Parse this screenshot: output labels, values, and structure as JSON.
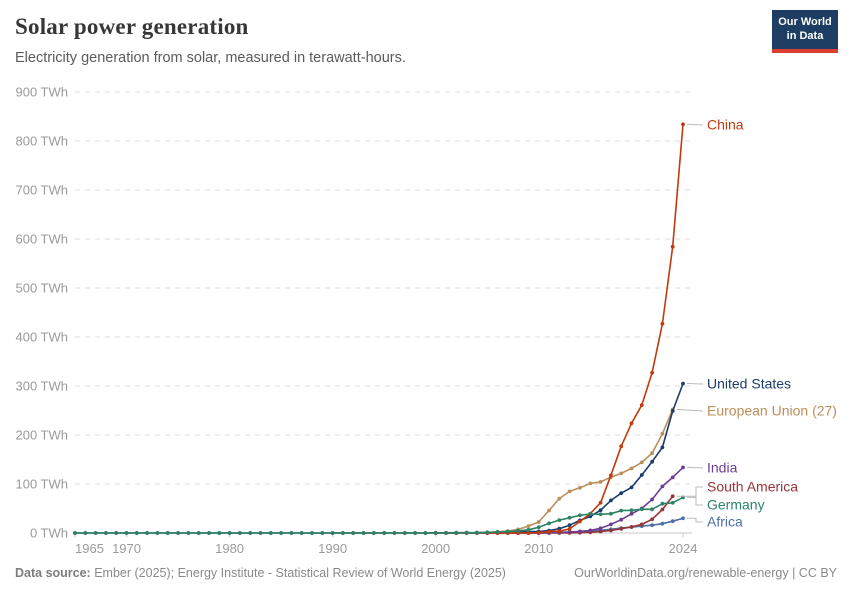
{
  "header": {
    "title": "Solar power generation",
    "subtitle": "Electricity generation from solar, measured in terawatt-hours.",
    "logo": {
      "line1": "Our World",
      "line2": "in Data"
    }
  },
  "footer": {
    "source_label": "Data source:",
    "source_text": " Ember (2025); Energy Institute - Statistical Review of World Energy (2025)",
    "right_text": "OurWorldinData.org/renewable-energy | CC BY"
  },
  "colors": {
    "logo_bg": "#1d3d63",
    "logo_underline": "#dc3d33",
    "gridline": "#dedede",
    "zero_line": "#c8c8c8",
    "tick_text": "#9a9a9a",
    "connector": "#bbbbbb"
  },
  "chart_data": {
    "type": "line",
    "unit": "TWh",
    "ylim": [
      0,
      900
    ],
    "ytick_interval": 100,
    "ytick_format": "{v} TWh",
    "x_range": [
      1965,
      2024
    ],
    "x_ticks": [
      1965,
      1970,
      1980,
      1990,
      2000,
      2010,
      2024
    ],
    "grid": "dashed-horizontal",
    "legend_position": "end-of-line-labels-right",
    "draw_order": [
      "European Union (27)",
      "United States",
      "Africa",
      "South America",
      "India",
      "China",
      "Germany"
    ],
    "series": [
      {
        "name": "China",
        "color": "#C13A0E",
        "label_y": 125,
        "start_year": 2000,
        "values": [
          0,
          0,
          0,
          0,
          0,
          0.1,
          0.1,
          0.1,
          0.2,
          0.4,
          0.7,
          2.6,
          3.6,
          8.4,
          23.5,
          39.5,
          61.9,
          117.8,
          176.9,
          223.8,
          261.1,
          327.0,
          427.0,
          584.2,
          834.1
        ]
      },
      {
        "name": "United States",
        "color": "#1B3D6D",
        "label_y": 384,
        "start_year": 1965,
        "values": [
          0,
          0,
          0,
          0,
          0,
          0,
          0,
          0,
          0,
          0,
          0,
          0,
          0,
          0,
          0,
          0,
          0,
          0,
          0,
          0,
          0,
          0,
          0,
          0,
          0,
          0,
          0,
          0,
          0,
          0,
          0,
          0,
          0,
          0,
          0,
          0.5,
          0.5,
          0.6,
          0.6,
          0.7,
          0.6,
          0.5,
          0.6,
          2.1,
          2.8,
          3.1,
          4.8,
          8.7,
          16.0,
          25.8,
          33.8,
          46.5,
          66.6,
          81.2,
          93.1,
          118.3,
          145.6,
          174.7,
          249.0,
          305.0
        ]
      },
      {
        "name": "European Union (27)",
        "color": "#BC8E5A",
        "label_y": 411,
        "start_year": 1990,
        "values": [
          0,
          0,
          0,
          0,
          0,
          0,
          0,
          0,
          0.1,
          0.1,
          0.1,
          0.2,
          0.3,
          0.5,
          0.7,
          1.5,
          2.5,
          3.8,
          7.4,
          14.1,
          22.5,
          45.9,
          70.3,
          84.8,
          92.3,
          101.3,
          104.3,
          113.8,
          121.6,
          131.8,
          144.1,
          162.9,
          202.4,
          252.2
        ]
      },
      {
        "name": "India",
        "color": "#6D3E91",
        "label_y": 468,
        "start_year": 2000,
        "values": [
          0,
          0,
          0,
          0,
          0,
          0,
          0,
          0.1,
          0.1,
          0.1,
          0.1,
          0.5,
          1.2,
          2.3,
          3.3,
          5.4,
          9.5,
          17.6,
          27.1,
          39.1,
          50.2,
          68.3,
          95.1,
          113.4,
          133.9
        ]
      },
      {
        "name": "South America",
        "color": "#983339",
        "label_y": 487,
        "start_year": 2005,
        "values": [
          0,
          0,
          0,
          0,
          0,
          0,
          0,
          0.1,
          0.2,
          0.7,
          1.5,
          2.8,
          5.0,
          8.5,
          12.5,
          17.5,
          28.0,
          48.0,
          75.0
        ]
      },
      {
        "name": "Germany",
        "color": "#2C8465",
        "label_y": 505,
        "start_year": 1965,
        "values": [
          0,
          0,
          0,
          0,
          0,
          0,
          0,
          0,
          0,
          0,
          0,
          0,
          0,
          0,
          0,
          0,
          0,
          0,
          0,
          0,
          0,
          0,
          0,
          0,
          0,
          0,
          0,
          0,
          0,
          0,
          0,
          0,
          0,
          0,
          0,
          0.1,
          0.1,
          0.2,
          0.3,
          0.6,
          1.3,
          2.2,
          3.1,
          4.4,
          6.6,
          11.7,
          19.6,
          26.4,
          31.0,
          36.1,
          38.7,
          38.1,
          39.4,
          45.8,
          46.4,
          48.6,
          48.4,
          59.8,
          61.6,
          72.6
        ]
      },
      {
        "name": "Africa",
        "color": "#4C6FA5",
        "label_y": 522,
        "start_year": 2000,
        "values": [
          0,
          0,
          0,
          0,
          0,
          0,
          0,
          0,
          0,
          0,
          0.2,
          0.4,
          0.7,
          1.2,
          2.5,
          4.0,
          5.5,
          7.5,
          10.0,
          12.0,
          14.0,
          16.0,
          19.0,
          24.0,
          30.0
        ]
      }
    ]
  }
}
